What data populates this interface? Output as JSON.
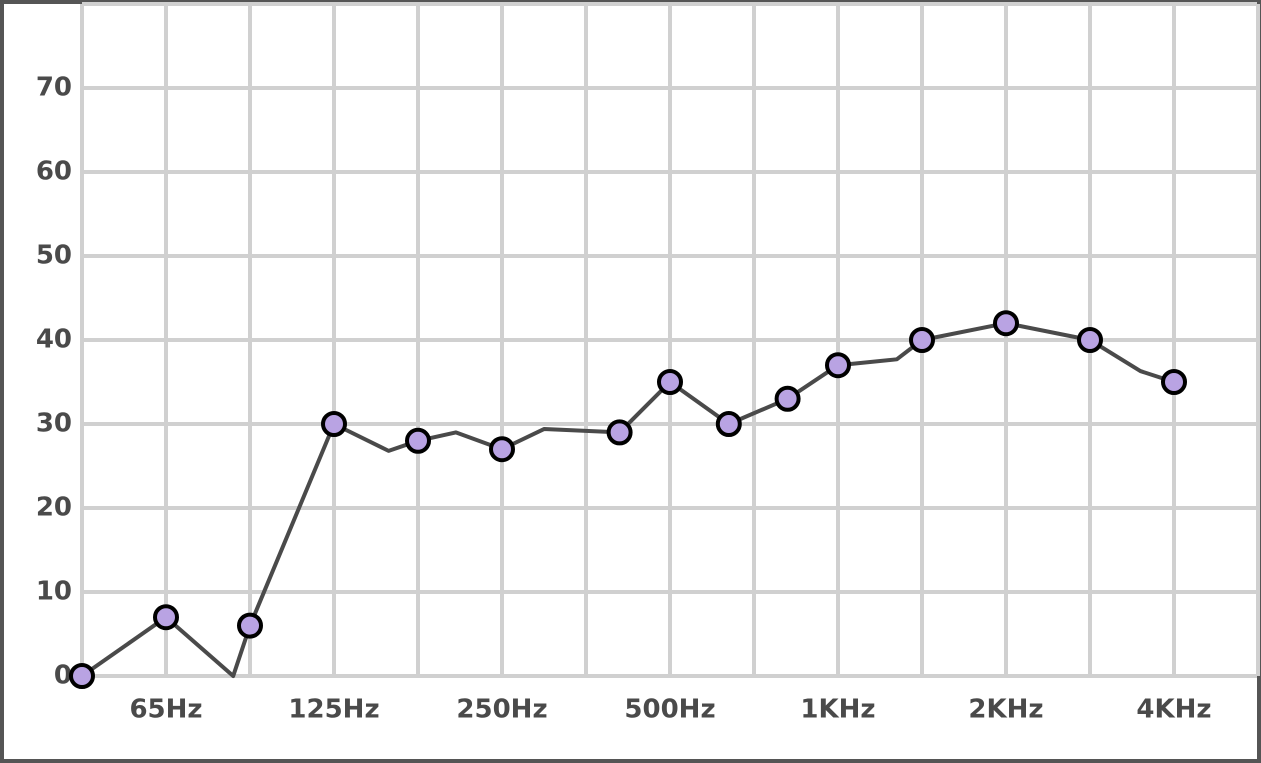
{
  "chart_data": {
    "type": "line",
    "xlim": [
      0,
      14
    ],
    "ylim": [
      0,
      80
    ],
    "yticks": [
      0,
      10,
      20,
      30,
      40,
      50,
      60,
      70
    ],
    "xticks": [
      {
        "value": 1,
        "label": "65Hz"
      },
      {
        "value": 3,
        "label": "125Hz"
      },
      {
        "value": 5,
        "label": "250Hz"
      },
      {
        "value": 7,
        "label": "500Hz"
      },
      {
        "value": 9,
        "label": "1KHz"
      },
      {
        "value": 11,
        "label": "2KHz"
      },
      {
        "value": 13,
        "label": "4KHz"
      }
    ],
    "grid": true,
    "line_color": "#4a4a4a",
    "marker_color": "#b9a3e3",
    "line": {
      "x": [
        0,
        1,
        1.8,
        2,
        3,
        3.65,
        4,
        4.45,
        5,
        5.5,
        6.4,
        7,
        7.7,
        8.4,
        9,
        9.7,
        10,
        11,
        12,
        12.6,
        13
      ],
      "values": [
        0,
        7,
        0,
        6,
        30,
        26.8,
        28,
        29,
        27,
        29.4,
        29,
        35,
        30,
        33,
        37,
        37.7,
        40,
        42,
        40,
        36.3,
        35
      ]
    },
    "markers": {
      "x": [
        0,
        1,
        2,
        3,
        4,
        5,
        6.4,
        7,
        7.7,
        8.4,
        9,
        10,
        11,
        12,
        13
      ],
      "values": [
        0,
        7,
        6,
        30,
        28,
        27,
        29,
        35,
        30,
        33,
        37,
        40,
        42,
        40,
        35
      ]
    }
  }
}
